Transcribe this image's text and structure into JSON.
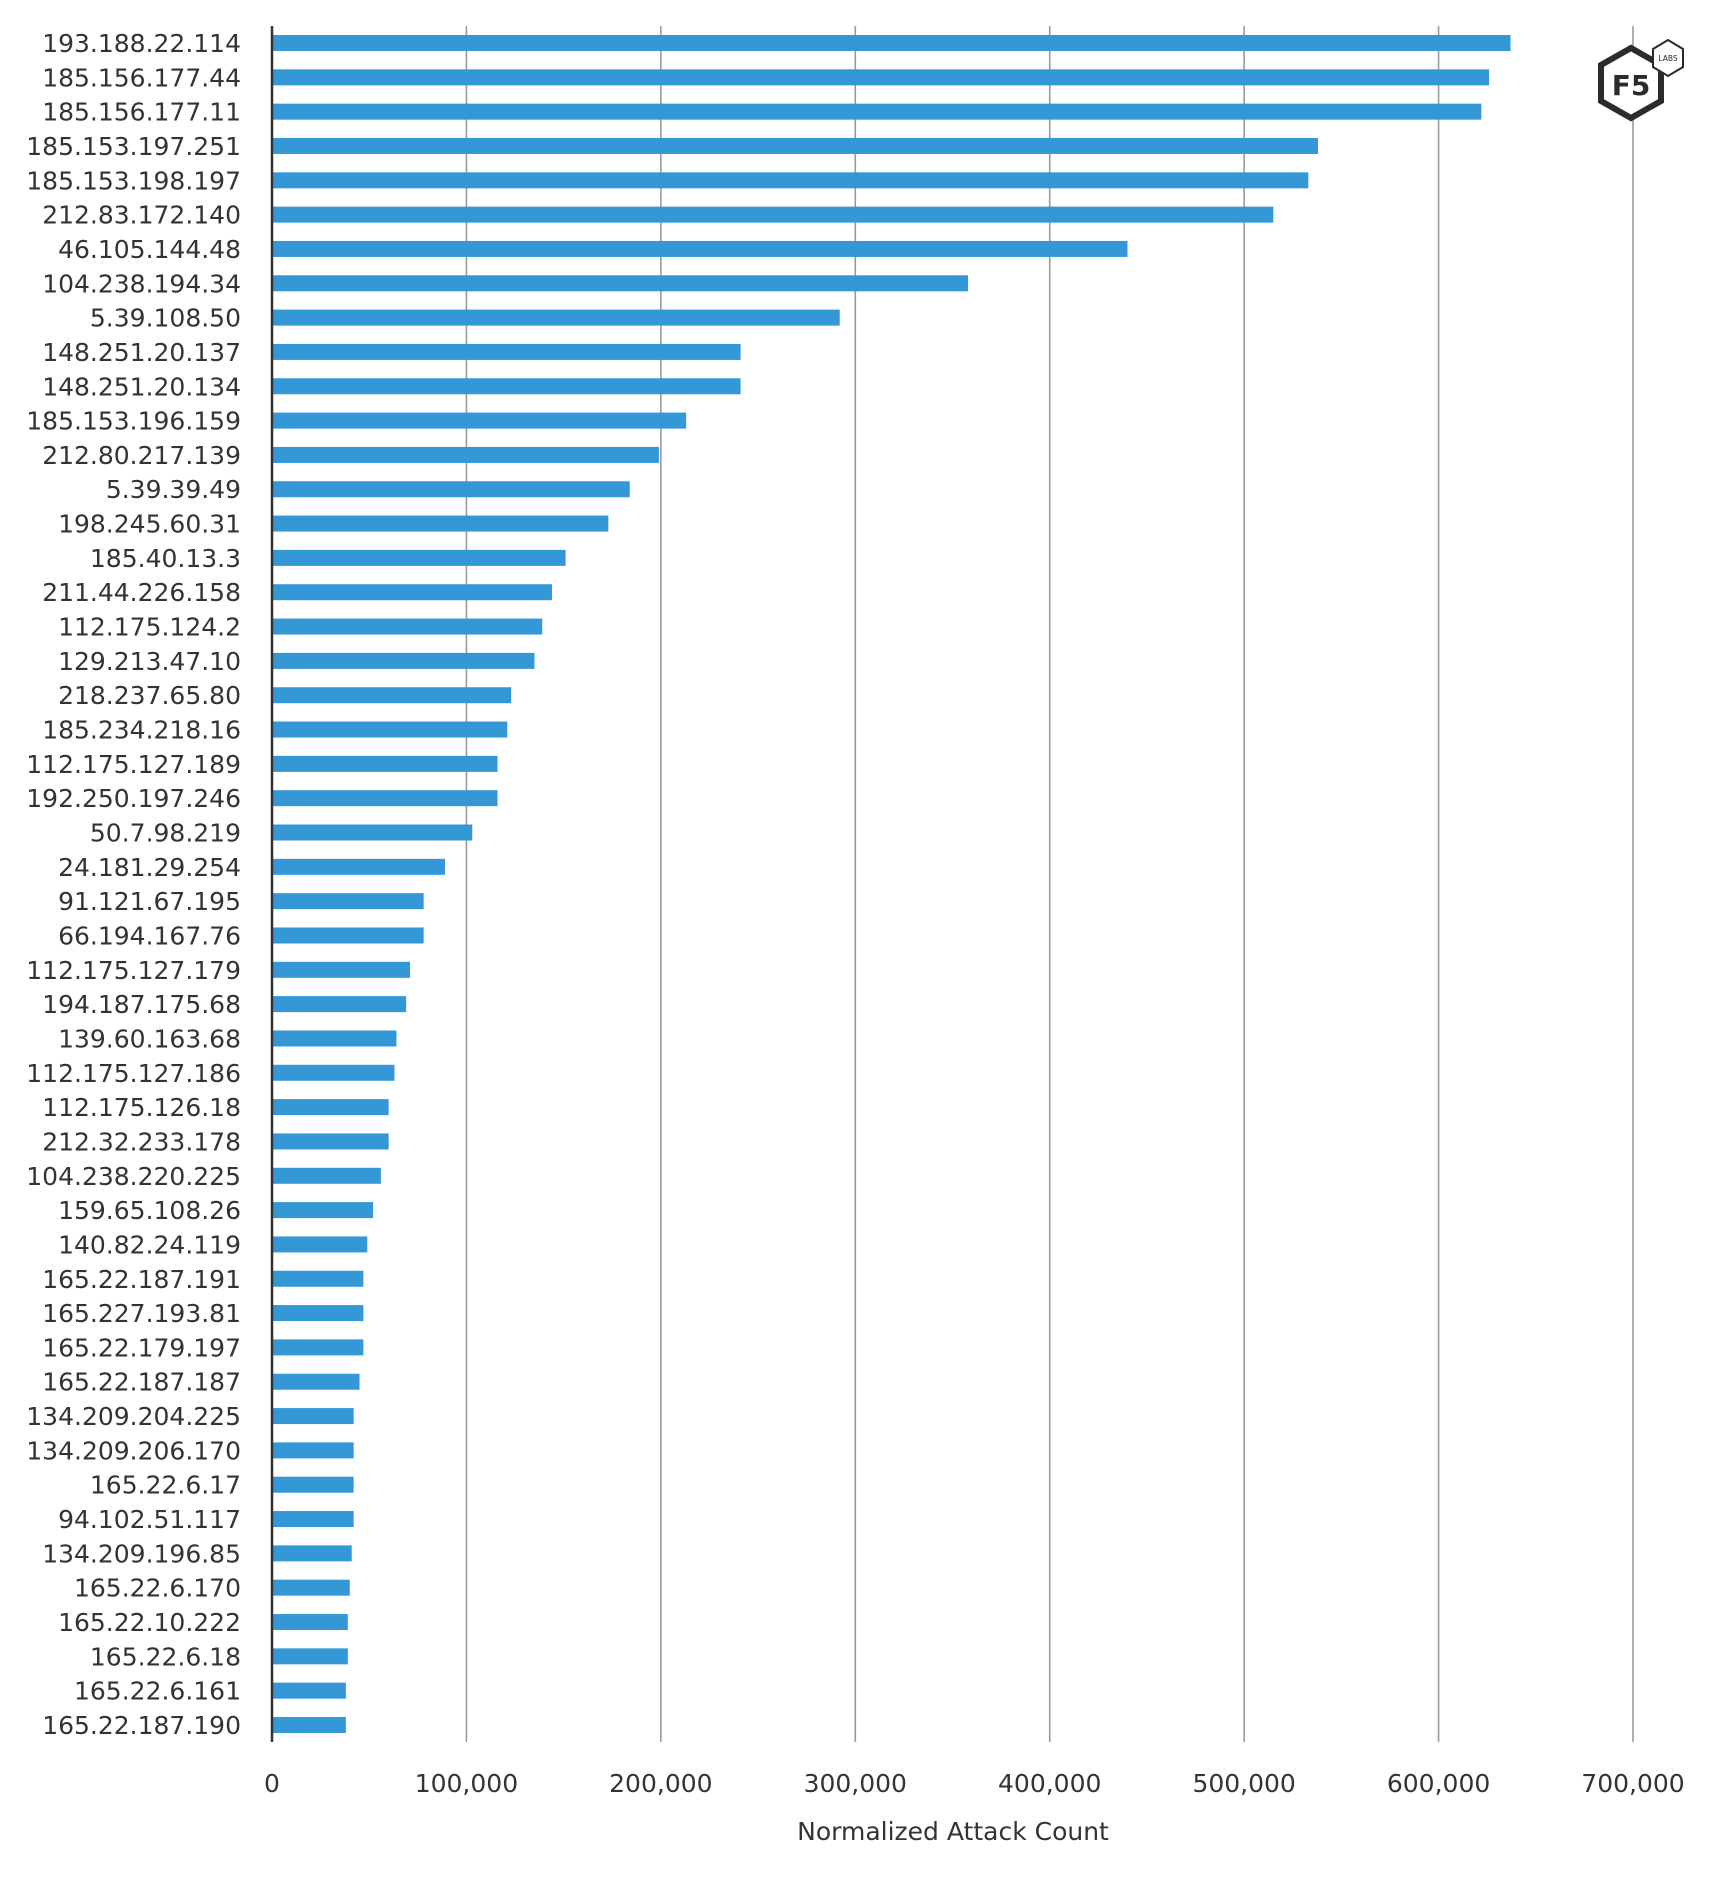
{
  "chart_data": {
    "type": "bar",
    "orientation": "horizontal",
    "title": "",
    "xlabel": "Normalized Attack Count",
    "ylabel": "",
    "xlim": [
      0,
      700000
    ],
    "grid": true,
    "bar_color": "#3498d6",
    "x_ticks": [
      0,
      100000,
      200000,
      300000,
      400000,
      500000,
      600000,
      700000
    ],
    "x_tick_labels": [
      "0",
      "100,000",
      "200,000",
      "300,000",
      "400,000",
      "500,000",
      "600,000",
      "700,000"
    ],
    "categories": [
      "193.188.22.114",
      "185.156.177.44",
      "185.156.177.11",
      "185.153.197.251",
      "185.153.198.197",
      "212.83.172.140",
      "46.105.144.48",
      "104.238.194.34",
      "5.39.108.50",
      "148.251.20.137",
      "148.251.20.134",
      "185.153.196.159",
      "212.80.217.139",
      "5.39.39.49",
      "198.245.60.31",
      "185.40.13.3",
      "211.44.226.158",
      "112.175.124.2",
      "129.213.47.10",
      "218.237.65.80",
      "185.234.218.16",
      "112.175.127.189",
      "192.250.197.246",
      "50.7.98.219",
      "24.181.29.254",
      "91.121.67.195",
      "66.194.167.76",
      "112.175.127.179",
      "194.187.175.68",
      "139.60.163.68",
      "112.175.127.186",
      "112.175.126.18",
      "212.32.233.178",
      "104.238.220.225",
      "159.65.108.26",
      "140.82.24.119",
      "165.22.187.191",
      "165.227.193.81",
      "165.22.179.197",
      "165.22.187.187",
      "134.209.204.225",
      "134.209.206.170",
      "165.22.6.17",
      "94.102.51.117",
      "134.209.196.85",
      "165.22.6.170",
      "165.22.10.222",
      "165.22.6.18",
      "165.22.6.161",
      "165.22.187.190"
    ],
    "values": [
      637000,
      626000,
      622000,
      538000,
      533000,
      515000,
      440000,
      358000,
      292000,
      241000,
      241000,
      213000,
      199000,
      184000,
      173000,
      151000,
      144000,
      139000,
      135000,
      123000,
      121000,
      116000,
      116000,
      103000,
      89000,
      78000,
      78000,
      71000,
      69000,
      64000,
      63000,
      60000,
      60000,
      56000,
      52000,
      49000,
      47000,
      47000,
      47000,
      45000,
      42000,
      42000,
      42000,
      42000,
      41000,
      40000,
      39000,
      39000,
      38000,
      38000
    ]
  },
  "logo": {
    "main_text": "F5",
    "badge_text": "LABS"
  }
}
